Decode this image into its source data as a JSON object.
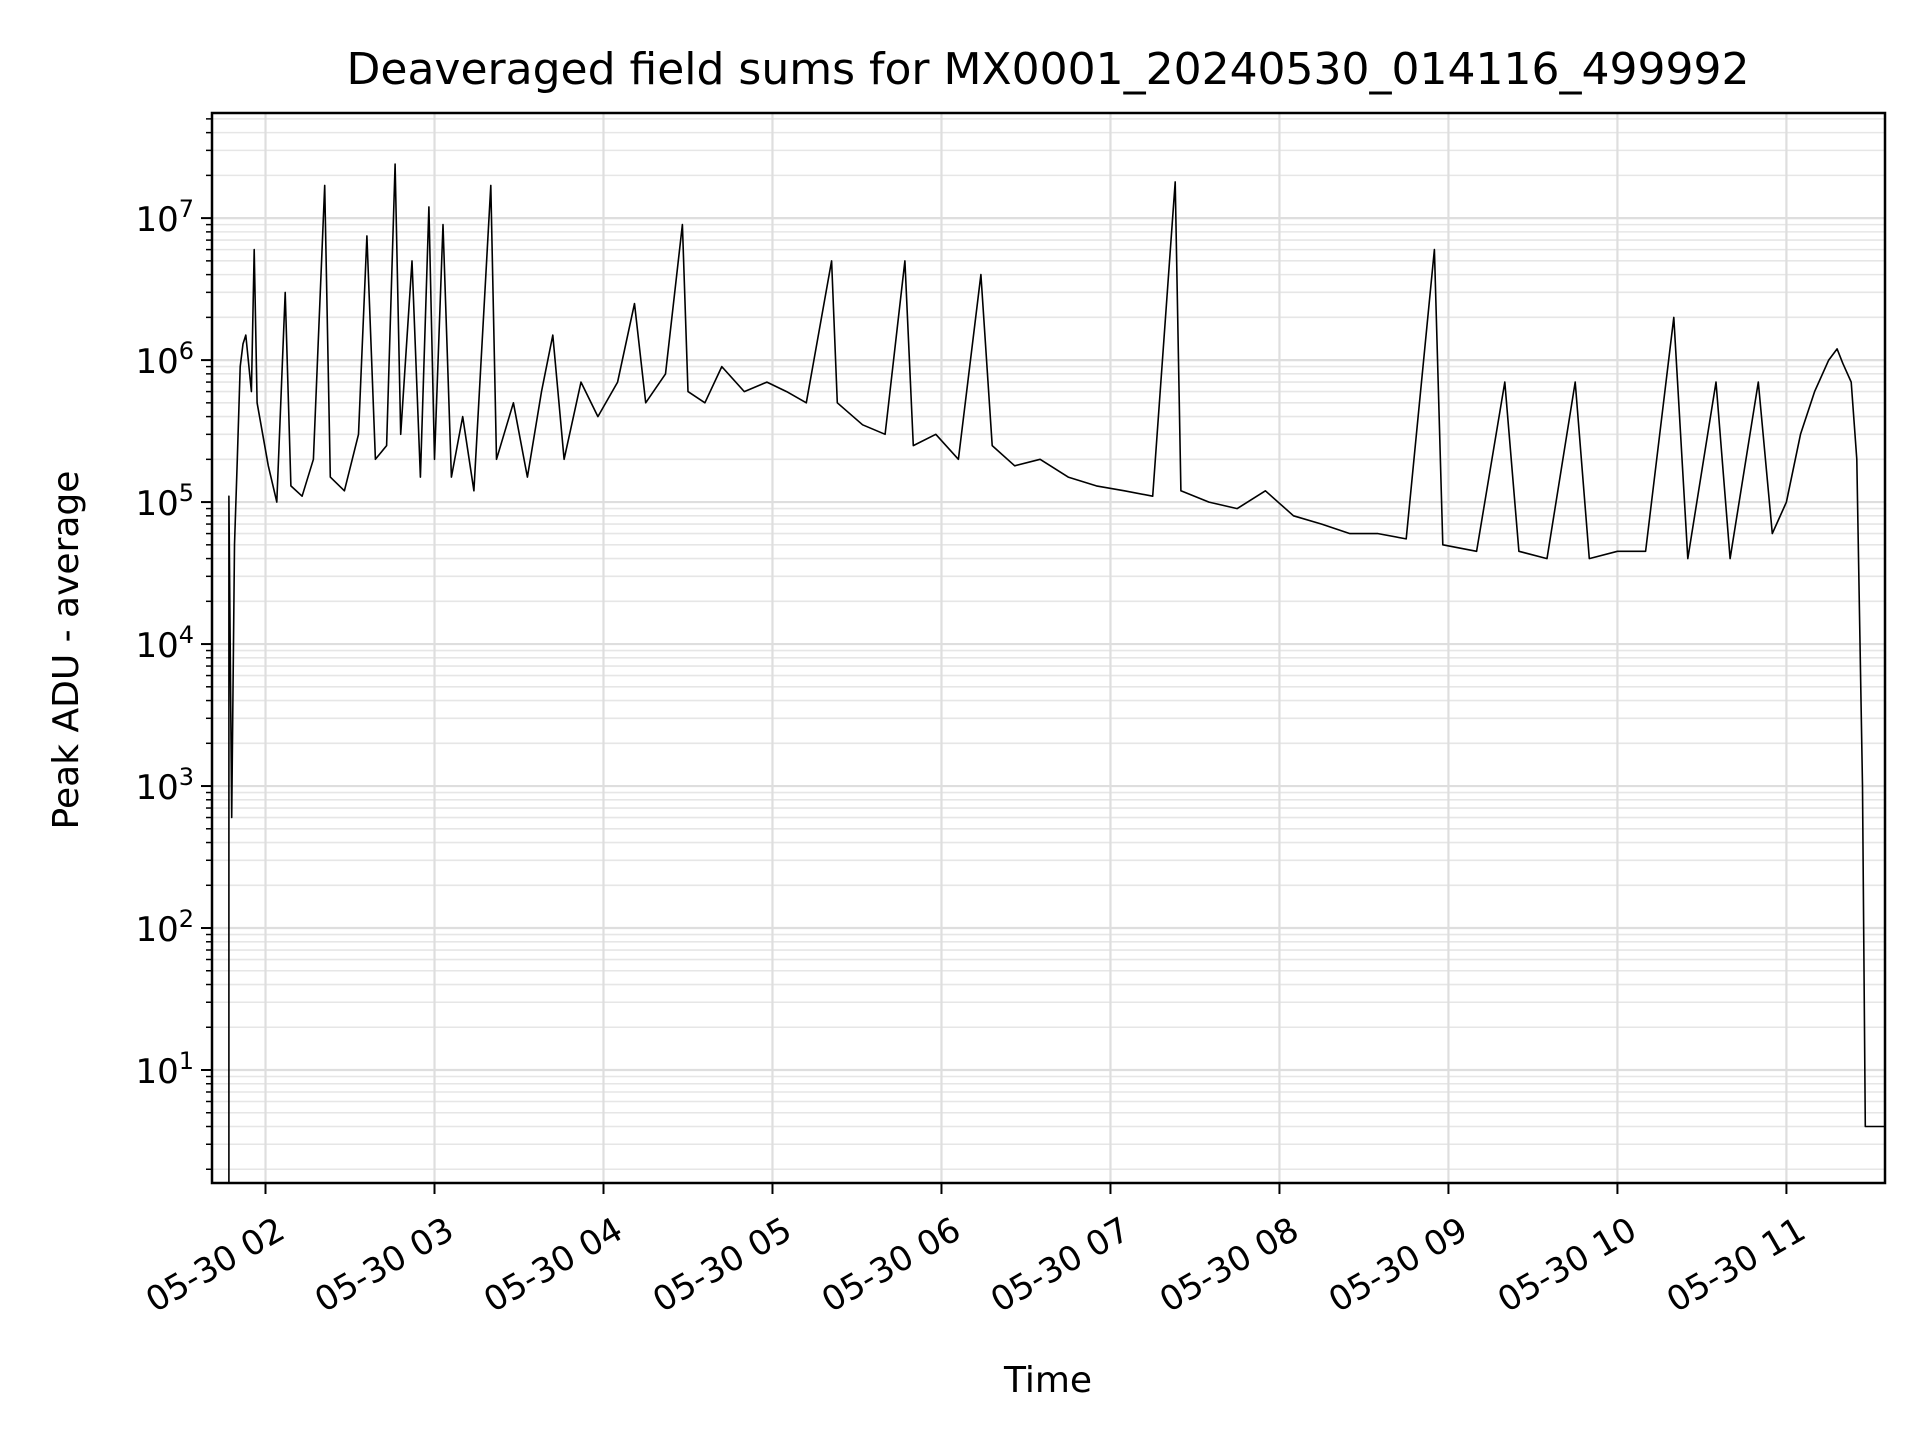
{
  "chart_data": {
    "type": "line",
    "title": "Deaveraged field sums for MX0001_20240530_014116_499992",
    "xlabel": "Time",
    "ylabel": "Peak ADU - average",
    "yscale": "log",
    "ylim": [
      1.6,
      55000000
    ],
    "xlim": [
      "2024-05-30 01:41",
      "2024-05-30 11:35"
    ],
    "grid": true,
    "x_ticks": [
      {
        "value": "2024-05-30 02:00",
        "label": "05-30 02"
      },
      {
        "value": "2024-05-30 03:00",
        "label": "05-30 03"
      },
      {
        "value": "2024-05-30 04:00",
        "label": "05-30 04"
      },
      {
        "value": "2024-05-30 05:00",
        "label": "05-30 05"
      },
      {
        "value": "2024-05-30 06:00",
        "label": "05-30 06"
      },
      {
        "value": "2024-05-30 07:00",
        "label": "05-30 07"
      },
      {
        "value": "2024-05-30 08:00",
        "label": "05-30 08"
      },
      {
        "value": "2024-05-30 09:00",
        "label": "05-30 09"
      },
      {
        "value": "2024-05-30 10:00",
        "label": "05-30 10"
      },
      {
        "value": "2024-05-30 11:00",
        "label": "05-30 11"
      }
    ],
    "y_ticks": [
      {
        "value": 10,
        "base": "10",
        "exp": "1"
      },
      {
        "value": 100,
        "base": "10",
        "exp": "2"
      },
      {
        "value": 1000,
        "base": "10",
        "exp": "3"
      },
      {
        "value": 10000,
        "base": "10",
        "exp": "4"
      },
      {
        "value": 100000,
        "base": "10",
        "exp": "5"
      },
      {
        "value": 1000000,
        "base": "10",
        "exp": "6"
      },
      {
        "value": 10000000,
        "base": "10",
        "exp": "7"
      }
    ],
    "line_color": "#000000",
    "series": [
      {
        "points": [
          [
            "2024-05-30 01:47",
            1.6
          ],
          [
            "2024-05-30 01:47",
            110000
          ],
          [
            "2024-05-30 01:48",
            600
          ],
          [
            "2024-05-30 01:49",
            50000
          ],
          [
            "2024-05-30 01:50",
            200000
          ],
          [
            "2024-05-30 01:51",
            900000
          ],
          [
            "2024-05-30 01:52",
            1300000
          ],
          [
            "2024-05-30 01:53",
            1500000
          ],
          [
            "2024-05-30 01:55",
            600000
          ],
          [
            "2024-05-30 01:56",
            6000000
          ],
          [
            "2024-05-30 01:57",
            500000
          ],
          [
            "2024-05-30 01:59",
            300000
          ],
          [
            "2024-05-30 02:01",
            180000
          ],
          [
            "2024-05-30 02:04",
            100000
          ],
          [
            "2024-05-30 02:07",
            3000000
          ],
          [
            "2024-05-30 02:09",
            130000
          ],
          [
            "2024-05-30 02:13",
            110000
          ],
          [
            "2024-05-30 02:17",
            200000
          ],
          [
            "2024-05-30 02:21",
            17000000
          ],
          [
            "2024-05-30 02:23",
            150000
          ],
          [
            "2024-05-30 02:28",
            120000
          ],
          [
            "2024-05-30 02:33",
            300000
          ],
          [
            "2024-05-30 02:36",
            7500000
          ],
          [
            "2024-05-30 02:39",
            200000
          ],
          [
            "2024-05-30 02:43",
            250000
          ],
          [
            "2024-05-30 02:46",
            24000000
          ],
          [
            "2024-05-30 02:48",
            300000
          ],
          [
            "2024-05-30 02:52",
            5000000
          ],
          [
            "2024-05-30 02:55",
            150000
          ],
          [
            "2024-05-30 02:58",
            12000000
          ],
          [
            "2024-05-30 03:00",
            200000
          ],
          [
            "2024-05-30 03:03",
            9000000
          ],
          [
            "2024-05-30 03:06",
            150000
          ],
          [
            "2024-05-30 03:10",
            400000
          ],
          [
            "2024-05-30 03:14",
            120000
          ],
          [
            "2024-05-30 03:20",
            17000000
          ],
          [
            "2024-05-30 03:22",
            200000
          ],
          [
            "2024-05-30 03:28",
            500000
          ],
          [
            "2024-05-30 03:33",
            150000
          ],
          [
            "2024-05-30 03:38",
            600000
          ],
          [
            "2024-05-30 03:42",
            1500000
          ],
          [
            "2024-05-30 03:46",
            200000
          ],
          [
            "2024-05-30 03:52",
            700000
          ],
          [
            "2024-05-30 03:58",
            400000
          ],
          [
            "2024-05-30 04:05",
            700000
          ],
          [
            "2024-05-30 04:11",
            2500000
          ],
          [
            "2024-05-30 04:15",
            500000
          ],
          [
            "2024-05-30 04:22",
            800000
          ],
          [
            "2024-05-30 04:28",
            9000000
          ],
          [
            "2024-05-30 04:30",
            600000
          ],
          [
            "2024-05-30 04:36",
            500000
          ],
          [
            "2024-05-30 04:42",
            900000
          ],
          [
            "2024-05-30 04:50",
            600000
          ],
          [
            "2024-05-30 04:58",
            700000
          ],
          [
            "2024-05-30 05:05",
            600000
          ],
          [
            "2024-05-30 05:12",
            500000
          ],
          [
            "2024-05-30 05:21",
            5000000
          ],
          [
            "2024-05-30 05:23",
            500000
          ],
          [
            "2024-05-30 05:32",
            350000
          ],
          [
            "2024-05-30 05:40",
            300000
          ],
          [
            "2024-05-30 05:47",
            5000000
          ],
          [
            "2024-05-30 05:50",
            250000
          ],
          [
            "2024-05-30 05:58",
            300000
          ],
          [
            "2024-05-30 06:06",
            200000
          ],
          [
            "2024-05-30 06:14",
            4000000
          ],
          [
            "2024-05-30 06:18",
            250000
          ],
          [
            "2024-05-30 06:26",
            180000
          ],
          [
            "2024-05-30 06:35",
            200000
          ],
          [
            "2024-05-30 06:45",
            150000
          ],
          [
            "2024-05-30 06:55",
            130000
          ],
          [
            "2024-05-30 07:05",
            120000
          ],
          [
            "2024-05-30 07:15",
            110000
          ],
          [
            "2024-05-30 07:23",
            18000000
          ],
          [
            "2024-05-30 07:25",
            120000
          ],
          [
            "2024-05-30 07:35",
            100000
          ],
          [
            "2024-05-30 07:45",
            90000
          ],
          [
            "2024-05-30 07:55",
            120000
          ],
          [
            "2024-05-30 08:05",
            80000
          ],
          [
            "2024-05-30 08:15",
            70000
          ],
          [
            "2024-05-30 08:25",
            60000
          ],
          [
            "2024-05-30 08:35",
            60000
          ],
          [
            "2024-05-30 08:45",
            55000
          ],
          [
            "2024-05-30 08:55",
            6000000
          ],
          [
            "2024-05-30 08:58",
            50000
          ],
          [
            "2024-05-30 09:10",
            45000
          ],
          [
            "2024-05-30 09:20",
            700000
          ],
          [
            "2024-05-30 09:25",
            45000
          ],
          [
            "2024-05-30 09:35",
            40000
          ],
          [
            "2024-05-30 09:45",
            700000
          ],
          [
            "2024-05-30 09:50",
            40000
          ],
          [
            "2024-05-30 10:00",
            45000
          ],
          [
            "2024-05-30 10:10",
            45000
          ],
          [
            "2024-05-30 10:20",
            2000000
          ],
          [
            "2024-05-30 10:25",
            40000
          ],
          [
            "2024-05-30 10:35",
            700000
          ],
          [
            "2024-05-30 10:40",
            40000
          ],
          [
            "2024-05-30 10:50",
            700000
          ],
          [
            "2024-05-30 10:55",
            60000
          ],
          [
            "2024-05-30 11:00",
            100000
          ],
          [
            "2024-05-30 11:05",
            300000
          ],
          [
            "2024-05-30 11:10",
            600000
          ],
          [
            "2024-05-30 11:15",
            1000000
          ],
          [
            "2024-05-30 11:18",
            1200000
          ],
          [
            "2024-05-30 11:20",
            950000
          ],
          [
            "2024-05-30 11:23",
            700000
          ],
          [
            "2024-05-30 11:25",
            200000
          ],
          [
            "2024-05-30 11:27",
            1000
          ],
          [
            "2024-05-30 11:28",
            4
          ],
          [
            "2024-05-30 11:35",
            4
          ]
        ]
      }
    ]
  }
}
